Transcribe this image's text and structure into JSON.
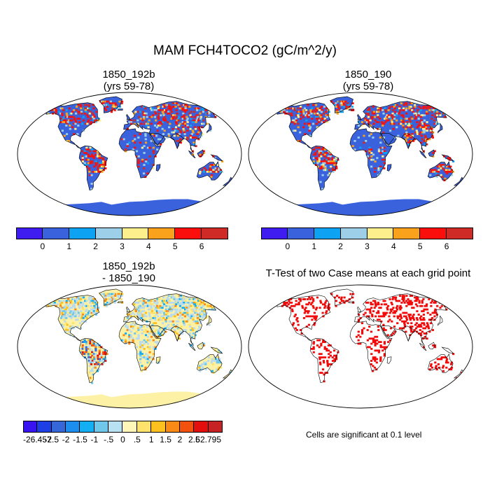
{
  "title": "MAM FCH4TOCO2 (gC/m^2/y)",
  "panels": [
    {
      "id": "case1",
      "title_line1": "1850_192b",
      "title_line2": "(yrs 59-78)",
      "kind": "field"
    },
    {
      "id": "case2",
      "title_line1": "1850_190",
      "title_line2": "(yrs 59-78)",
      "kind": "field"
    },
    {
      "id": "diff",
      "title_line1": "1850_192b",
      "title_line2": "- 1850_190",
      "kind": "difference"
    },
    {
      "id": "ttest",
      "title_line1": "T-Test of two Case means at each grid point",
      "title_line2": "",
      "kind": "significance"
    }
  ],
  "colorbars": {
    "field": {
      "colors": [
        "#3f1cf0",
        "#3a62dd",
        "#0ea3f2",
        "#9dd0e8",
        "#fdef8b",
        "#fba21c",
        "#fb0f0d",
        "#d02a26"
      ],
      "labels": [
        "0",
        "1",
        "2",
        "3",
        "4",
        "5",
        "6"
      ]
    },
    "diff": {
      "colors": [
        "#3a14f0",
        "#1e3fe6",
        "#3567d8",
        "#1b8ef0",
        "#14aef2",
        "#6fc7ea",
        "#b8e2f2",
        "#fff6b8",
        "#fde36c",
        "#fcc11e",
        "#f98a16",
        "#f2520e",
        "#e30f0c",
        "#c72223"
      ],
      "labels": [
        "-26.457",
        "-2.5",
        "-2",
        "-1.5",
        "-1",
        "-.5",
        "0",
        ".5",
        "1",
        "1.5",
        "2",
        "2.5",
        "62.795"
      ]
    }
  },
  "significance_note": "Cells are significant at 0.1 level",
  "map_colors": {
    "field_land": "#3a62dd",
    "diff_land": "#fdf1a6",
    "diff_ocean_blue": "#b8dbf0",
    "significant": "#f20b0b",
    "coast": "#000000"
  }
}
